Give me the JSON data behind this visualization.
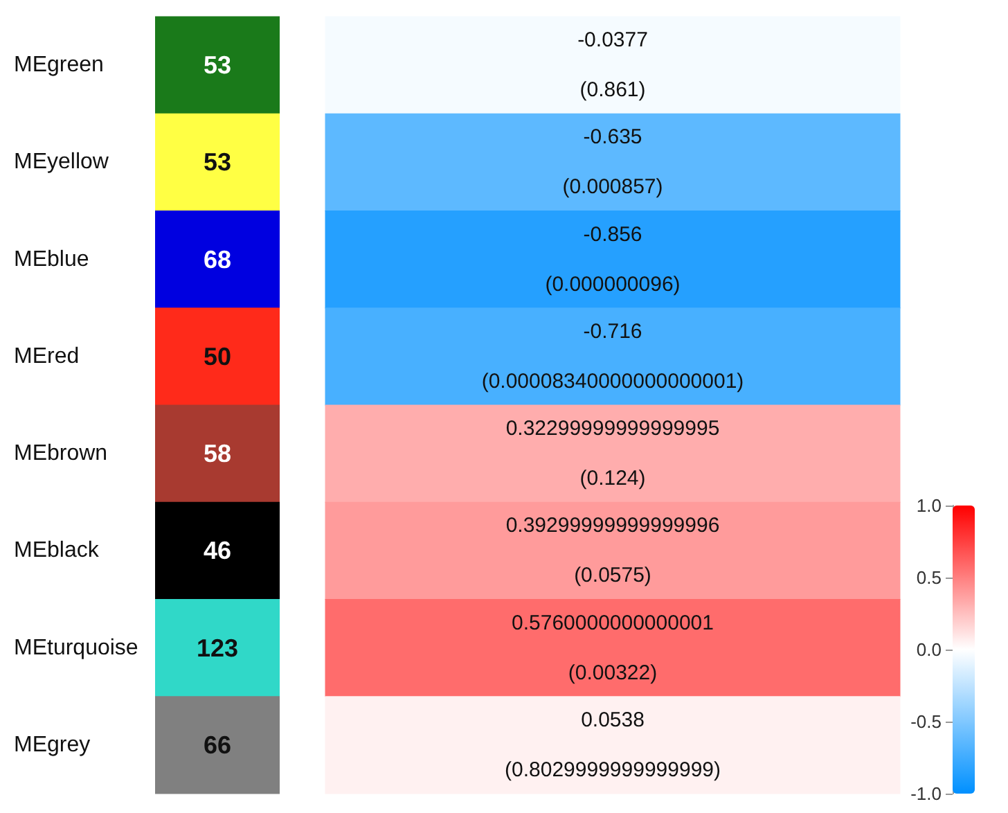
{
  "chart_data": [
    {
      "type": "other",
      "values": [
        53,
        53,
        68,
        50,
        58,
        46,
        123,
        66
      ],
      "colors": [
        "#1a7a1a",
        "#ffff44",
        "#0000e0",
        "#ff2a1a",
        "#a83a30",
        "#000000",
        "#30d8c8",
        "#808080"
      ],
      "data_labels": true
    },
    {
      "type": "heatmap",
      "categories": [
        null
      ],
      "y_categories": [
        "MEgreen",
        "MEyellow",
        "MEblue",
        "MEred",
        "MEbrown",
        "MEblack",
        "MEturquoise",
        "MEgrey"
      ],
      "tick_labels": "y",
      "cells": [
        [
          -0.0377
        ],
        [
          -0.635
        ],
        [
          -0.856
        ],
        [
          -0.716
        ],
        [
          0.32299999999999995
        ],
        [
          0.39299999999999996
        ],
        [
          0.5760000000000001
        ],
        [
          0.0538
        ]
      ],
      "cell_labels": [
        [
          "-0.0377\n(0.861)"
        ],
        [
          "-0.635\n(0.000857)"
        ],
        [
          "-0.856\n(0.000000096)"
        ],
        [
          "-0.716\n(0.00008340000000000001)"
        ],
        [
          "0.32299999999999995\n(0.124)"
        ],
        [
          "0.39299999999999996\n(0.0575)"
        ],
        [
          "0.5760000000000001\n(0.00322)"
        ],
        [
          "0.0538\n(0.8029999999999999)"
        ]
      ],
      "clim": [
        -1,
        1
      ],
      "cticks": [
        {
          "value": -1,
          "label": "-1.0"
        },
        {
          "value": -0.5,
          "label": "-0.5"
        },
        {
          "value": 0,
          "label": "0.0"
        },
        {
          "value": 0.5,
          "label": "0.5"
        },
        {
          "value": 1,
          "label": "1.0"
        }
      ]
    }
  ]
}
